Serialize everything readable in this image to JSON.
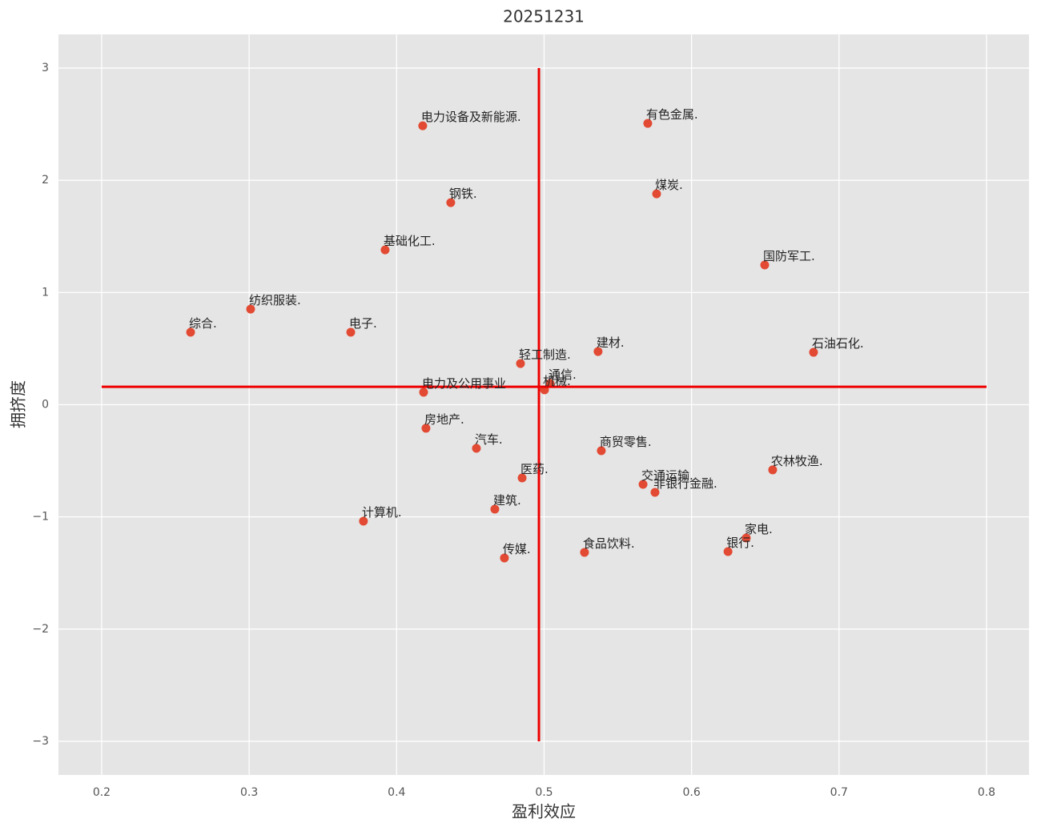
{
  "chart_data": {
    "type": "scatter",
    "title": "20251231",
    "x_label": "盈利效应",
    "y_label": "拥挤度",
    "xlim": [
      0.1707,
      0.8288
    ],
    "ylim": [
      -3.3,
      3.3
    ],
    "xticks": [
      0.2,
      0.3,
      0.4,
      0.5,
      0.6,
      0.7,
      0.8
    ],
    "yticks": [
      {
        "value": -3,
        "label": "−3"
      },
      {
        "value": -2,
        "label": "−2"
      },
      {
        "value": -1,
        "label": "−1"
      },
      0,
      1,
      2,
      3
    ],
    "grid": true,
    "color": "#e24a33",
    "labels": [
      "电力设备及新能源.",
      "有色金属.",
      "钢铁.",
      "煤炭.",
      "基础化工.",
      "国防军工.",
      "纺织服装.",
      "综合.",
      "电子.",
      "建材.",
      "石油石化.",
      "轻工制造.",
      "通信.",
      "机械.",
      "电力及公用事业",
      "房地产.",
      "汽车.",
      "商贸零售.",
      "农林牧渔.",
      "医药.",
      "交通运输.",
      "非银行金融.",
      "建筑.",
      "计算机.",
      "家电.",
      "银行.",
      "食品饮料.",
      "传媒."
    ],
    "x": [
      0.4177,
      0.5703,
      0.4367,
      0.5763,
      0.3922,
      0.6496,
      0.301,
      0.2603,
      0.3689,
      0.5366,
      0.6827,
      0.484,
      0.5041,
      0.5003,
      0.4183,
      0.4199,
      0.4541,
      0.5388,
      0.655,
      0.4851,
      0.5671,
      0.5752,
      0.4666,
      0.3775,
      0.6371,
      0.6247,
      0.5274,
      0.4731
    ],
    "values": [
      2.486,
      2.507,
      1.801,
      1.879,
      1.38,
      1.245,
      0.852,
      0.646,
      0.646,
      0.474,
      0.467,
      0.367,
      0.189,
      0.132,
      0.111,
      -0.21,
      -0.389,
      -0.41,
      -0.581,
      -0.653,
      -0.71,
      -0.781,
      -0.931,
      -1.038,
      -1.188,
      -1.309,
      -1.316,
      -1.366
    ],
    "reference_lines": {
      "color": "#ee0000",
      "vline": {
        "x": 0.4965,
        "ymin": -3,
        "ymax": 3
      },
      "hline": {
        "y": 0.16,
        "xmin": 0.2,
        "xmax": 0.8
      }
    }
  }
}
